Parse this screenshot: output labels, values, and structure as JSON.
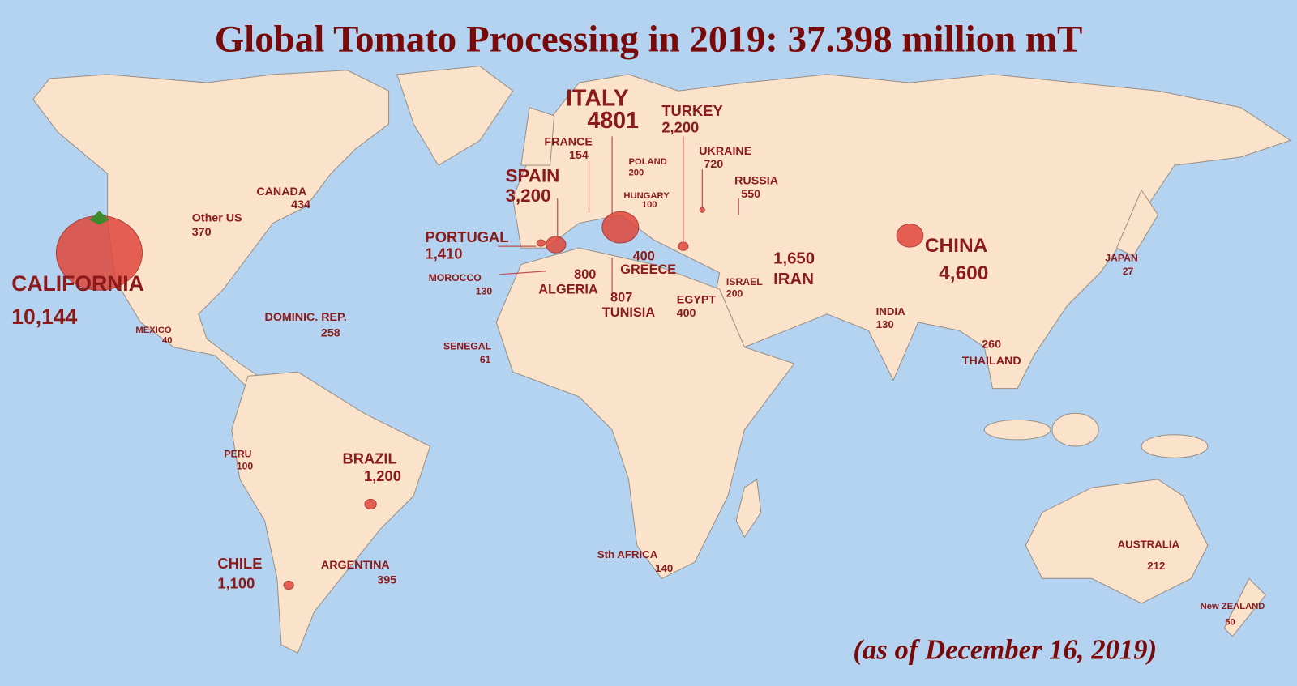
{
  "title": "Global Tomato Processing in 2019: 37.398 million mT",
  "date_note": "(as of December 16, 2019)",
  "regions": [
    {
      "name": "CALIFORNIA",
      "value": "10,144"
    },
    {
      "name": "Other US",
      "value": "370"
    },
    {
      "name": "CANADA",
      "value": "434"
    },
    {
      "name": "MEXICO",
      "value": "40"
    },
    {
      "name": "DOMINIC. REP.",
      "value": "258"
    },
    {
      "name": "PERU",
      "value": "100"
    },
    {
      "name": "BRAZIL",
      "value": "1,200"
    },
    {
      "name": "CHILE",
      "value": "1,100"
    },
    {
      "name": "ARGENTINA",
      "value": "395"
    },
    {
      "name": "PORTUGAL",
      "value": "1,410"
    },
    {
      "name": "SPAIN",
      "value": "3,200"
    },
    {
      "name": "FRANCE",
      "value": "154"
    },
    {
      "name": "ITALY",
      "value": "4801"
    },
    {
      "name": "POLAND",
      "value": "200"
    },
    {
      "name": "HUNGARY",
      "value": "100"
    },
    {
      "name": "TURKEY",
      "value": "2,200"
    },
    {
      "name": "UKRAINE",
      "value": "720"
    },
    {
      "name": "RUSSIA",
      "value": "550"
    },
    {
      "name": "MOROCCO",
      "value": "130"
    },
    {
      "name": "ALGERIA",
      "value": "800"
    },
    {
      "name": "TUNISIA",
      "value": "807"
    },
    {
      "name": "GREECE",
      "value": "400"
    },
    {
      "name": "EGYPT",
      "value": "400"
    },
    {
      "name": "ISRAEL",
      "value": "200"
    },
    {
      "name": "IRAN",
      "value": "1,650"
    },
    {
      "name": "CHINA",
      "value": "4,600"
    },
    {
      "name": "JAPAN",
      "value": "27"
    },
    {
      "name": "INDIA",
      "value": "130"
    },
    {
      "name": "THAILAND",
      "value": "260"
    },
    {
      "name": "SENEGAL",
      "value": "61"
    },
    {
      "name": "Sth AFRICA",
      "value": "140"
    },
    {
      "name": "AUSTRALIA",
      "value": "212"
    },
    {
      "name": "New ZEALAND",
      "value": "50"
    }
  ]
}
